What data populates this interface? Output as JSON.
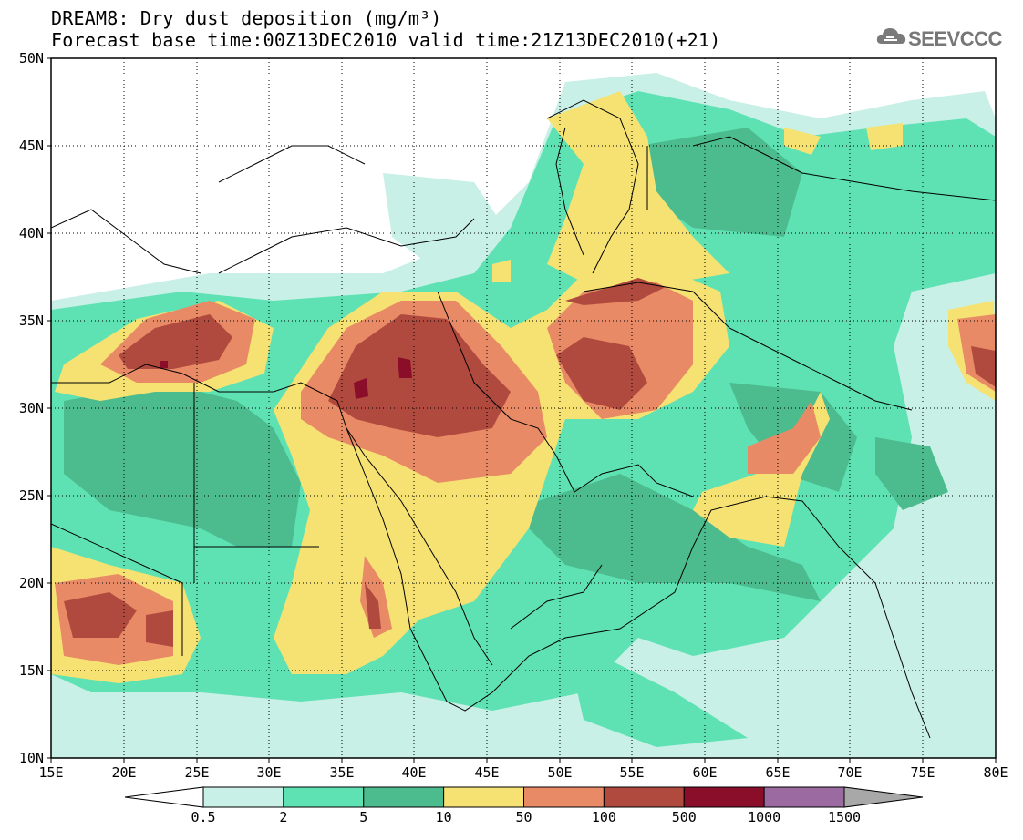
{
  "header": {
    "title_line1": "DREAM8: Dry dust deposition (mg/m³)",
    "title_line2": "Forecast base time:00Z13DEC2010 valid time:21Z13DEC2010(+21)"
  },
  "logo": {
    "text": "SEEVCCC",
    "icon": "cloud-icon"
  },
  "map": {
    "lat_labels": [
      "50N",
      "45N",
      "40N",
      "35N",
      "30N",
      "25N",
      "20N",
      "15N",
      "10N"
    ],
    "lon_labels": [
      "15E",
      "20E",
      "25E",
      "30E",
      "35E",
      "40E",
      "45E",
      "50E",
      "55E",
      "60E",
      "65E",
      "70E",
      "75E",
      "80E"
    ],
    "lon_range": [
      15,
      80
    ],
    "lat_range": [
      10,
      50
    ]
  },
  "colorbar": {
    "levels": [
      "0.5",
      "2",
      "5",
      "10",
      "50",
      "100",
      "500",
      "1000",
      "1500"
    ],
    "colors": [
      "#ffffff",
      "#c8f0e6",
      "#5ee2b4",
      "#4cbc8e",
      "#f5e272",
      "#e88a66",
      "#b04a3e",
      "#8a0e2a",
      "#9a6aa0",
      "#a8a8a8"
    ]
  }
}
